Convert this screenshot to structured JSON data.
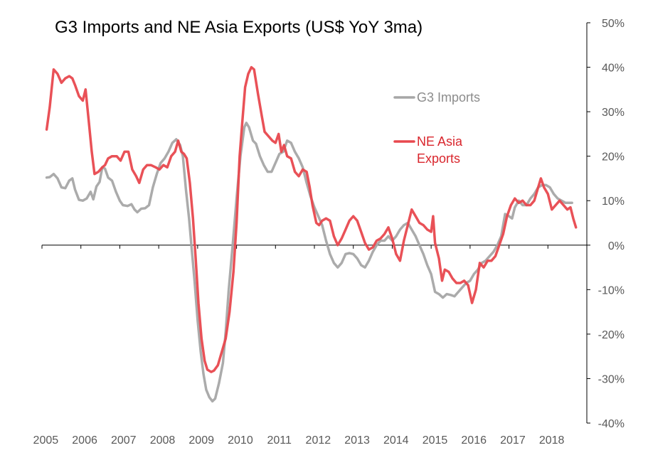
{
  "chart_data": {
    "type": "line",
    "title": "G3 Imports and NE Asia Exports (US$ YoY 3ma)",
    "xlabel": "",
    "ylabel": "",
    "x_ticks": [
      "2005",
      "2006",
      "2007",
      "2008",
      "2009",
      "2010",
      "2011",
      "2012",
      "2013",
      "2014",
      "2015",
      "2016",
      "2017",
      "2018"
    ],
    "y_ticks": [
      "50%",
      "40%",
      "30%",
      "20%",
      "10%",
      "0%",
      "-10%",
      "-20%",
      "-30%",
      "-40%"
    ],
    "y_tick_values": [
      50,
      40,
      30,
      20,
      10,
      0,
      -10,
      -20,
      -30,
      -40
    ],
    "ylim": [
      -40,
      50
    ],
    "xlim": [
      2005.0,
      2019.0
    ],
    "y_axis_side": "right",
    "grid": false,
    "legend_position": "upper-right-inside",
    "series": [
      {
        "name": "G3 Imports",
        "label_lines": [
          "G3 Imports"
        ],
        "color": "#a6a6a6",
        "points": [
          [
            2005.12,
            15.2
          ],
          [
            2005.2,
            15.3
          ],
          [
            2005.3,
            16.0
          ],
          [
            2005.4,
            15.0
          ],
          [
            2005.5,
            13.0
          ],
          [
            2005.6,
            12.8
          ],
          [
            2005.7,
            14.5
          ],
          [
            2005.78,
            15.0
          ],
          [
            2005.85,
            12.5
          ],
          [
            2005.95,
            10.2
          ],
          [
            2006.05,
            10.0
          ],
          [
            2006.15,
            10.5
          ],
          [
            2006.25,
            12.0
          ],
          [
            2006.32,
            10.3
          ],
          [
            2006.4,
            13.2
          ],
          [
            2006.48,
            14.2
          ],
          [
            2006.55,
            17.5
          ],
          [
            2006.62,
            17.2
          ],
          [
            2006.7,
            15.2
          ],
          [
            2006.8,
            14.5
          ],
          [
            2006.9,
            12.0
          ],
          [
            2007.0,
            10.0
          ],
          [
            2007.08,
            9.0
          ],
          [
            2007.2,
            8.8
          ],
          [
            2007.3,
            9.2
          ],
          [
            2007.38,
            8.0
          ],
          [
            2007.45,
            7.4
          ],
          [
            2007.55,
            8.2
          ],
          [
            2007.65,
            8.3
          ],
          [
            2007.75,
            9.0
          ],
          [
            2007.85,
            13.0
          ],
          [
            2007.95,
            16.0
          ],
          [
            2008.05,
            18.5
          ],
          [
            2008.15,
            19.5
          ],
          [
            2008.25,
            21.0
          ],
          [
            2008.35,
            23.0
          ],
          [
            2008.45,
            23.8
          ],
          [
            2008.55,
            22.5
          ],
          [
            2008.62,
            20.0
          ],
          [
            2008.7,
            12.5
          ],
          [
            2008.78,
            6.0
          ],
          [
            2008.85,
            -1.0
          ],
          [
            2008.92,
            -8.0
          ],
          [
            2009.0,
            -17.0
          ],
          [
            2009.08,
            -24.0
          ],
          [
            2009.15,
            -29.0
          ],
          [
            2009.22,
            -32.5
          ],
          [
            2009.3,
            -34.2
          ],
          [
            2009.38,
            -35.1
          ],
          [
            2009.45,
            -34.5
          ],
          [
            2009.55,
            -31.0
          ],
          [
            2009.65,
            -26.5
          ],
          [
            2009.72,
            -19.5
          ],
          [
            2009.8,
            -10.0
          ],
          [
            2009.9,
            0.0
          ],
          [
            2010.0,
            10.5
          ],
          [
            2010.1,
            20.0
          ],
          [
            2010.2,
            26.5
          ],
          [
            2010.25,
            27.5
          ],
          [
            2010.32,
            26.5
          ],
          [
            2010.42,
            23.5
          ],
          [
            2010.5,
            22.8
          ],
          [
            2010.6,
            20.0
          ],
          [
            2010.7,
            18.0
          ],
          [
            2010.8,
            16.5
          ],
          [
            2010.9,
            16.5
          ],
          [
            2011.0,
            18.5
          ],
          [
            2011.1,
            20.5
          ],
          [
            2011.2,
            21.0
          ],
          [
            2011.3,
            23.5
          ],
          [
            2011.4,
            23.0
          ],
          [
            2011.5,
            21.0
          ],
          [
            2011.6,
            19.5
          ],
          [
            2011.7,
            17.5
          ],
          [
            2011.8,
            14.0
          ],
          [
            2011.9,
            11.0
          ],
          [
            2012.0,
            8.5
          ],
          [
            2012.1,
            6.5
          ],
          [
            2012.2,
            4.5
          ],
          [
            2012.3,
            1.0
          ],
          [
            2012.4,
            -2.0
          ],
          [
            2012.5,
            -4.0
          ],
          [
            2012.6,
            -5.0
          ],
          [
            2012.7,
            -4.0
          ],
          [
            2012.8,
            -2.0
          ],
          [
            2012.9,
            -1.8
          ],
          [
            2013.0,
            -2.0
          ],
          [
            2013.1,
            -3.0
          ],
          [
            2013.2,
            -4.5
          ],
          [
            2013.3,
            -5.0
          ],
          [
            2013.4,
            -3.5
          ],
          [
            2013.5,
            -1.5
          ],
          [
            2013.6,
            0.0
          ],
          [
            2013.7,
            1.0
          ],
          [
            2013.8,
            1.0
          ],
          [
            2013.9,
            2.0
          ],
          [
            2014.0,
            1.0
          ],
          [
            2014.1,
            2.0
          ],
          [
            2014.2,
            3.5
          ],
          [
            2014.3,
            4.5
          ],
          [
            2014.4,
            5.0
          ],
          [
            2014.5,
            3.5
          ],
          [
            2014.6,
            2.0
          ],
          [
            2014.7,
            0.0
          ],
          [
            2014.8,
            -2.0
          ],
          [
            2014.9,
            -4.5
          ],
          [
            2015.0,
            -6.5
          ],
          [
            2015.1,
            -10.5
          ],
          [
            2015.2,
            -11.0
          ],
          [
            2015.3,
            -11.8
          ],
          [
            2015.4,
            -11.0
          ],
          [
            2015.5,
            -11.2
          ],
          [
            2015.6,
            -11.5
          ],
          [
            2015.7,
            -10.5
          ],
          [
            2015.8,
            -9.5
          ],
          [
            2015.9,
            -8.5
          ],
          [
            2016.0,
            -8.0
          ],
          [
            2016.1,
            -6.5
          ],
          [
            2016.2,
            -5.5
          ],
          [
            2016.3,
            -4.0
          ],
          [
            2016.4,
            -3.5
          ],
          [
            2016.5,
            -2.5
          ],
          [
            2016.6,
            -1.5
          ],
          [
            2016.7,
            0.0
          ],
          [
            2016.8,
            2.0
          ],
          [
            2016.9,
            7.0
          ],
          [
            2017.0,
            6.5
          ],
          [
            2017.08,
            6.0
          ],
          [
            2017.15,
            8.5
          ],
          [
            2017.25,
            10.0
          ],
          [
            2017.35,
            9.0
          ],
          [
            2017.45,
            9.0
          ],
          [
            2017.55,
            10.5
          ],
          [
            2017.65,
            11.5
          ],
          [
            2017.75,
            13.0
          ],
          [
            2017.85,
            13.5
          ],
          [
            2017.95,
            13.5
          ],
          [
            2018.05,
            13.0
          ],
          [
            2018.15,
            11.5
          ],
          [
            2018.25,
            10.5
          ],
          [
            2018.35,
            10.0
          ],
          [
            2018.45,
            9.5
          ],
          [
            2018.55,
            9.5
          ],
          [
            2018.62,
            9.5
          ]
        ]
      },
      {
        "name": "NE Asia Exports",
        "label_lines": [
          "NE Asia",
          "Exports"
        ],
        "color": "#e8484e",
        "points": [
          [
            2005.12,
            26.0
          ],
          [
            2005.2,
            31.0
          ],
          [
            2005.3,
            39.5
          ],
          [
            2005.4,
            38.5
          ],
          [
            2005.5,
            36.5
          ],
          [
            2005.6,
            37.5
          ],
          [
            2005.7,
            38.0
          ],
          [
            2005.78,
            37.5
          ],
          [
            2005.85,
            36.0
          ],
          [
            2005.95,
            33.5
          ],
          [
            2006.05,
            32.5
          ],
          [
            2006.12,
            35.0
          ],
          [
            2006.2,
            28.0
          ],
          [
            2006.28,
            21.0
          ],
          [
            2006.35,
            16.0
          ],
          [
            2006.45,
            16.5
          ],
          [
            2006.55,
            17.5
          ],
          [
            2006.62,
            18.0
          ],
          [
            2006.7,
            19.5
          ],
          [
            2006.8,
            20.0
          ],
          [
            2006.92,
            20.0
          ],
          [
            2007.02,
            19.0
          ],
          [
            2007.12,
            21.0
          ],
          [
            2007.22,
            21.0
          ],
          [
            2007.32,
            17.0
          ],
          [
            2007.42,
            15.5
          ],
          [
            2007.5,
            14.0
          ],
          [
            2007.6,
            17.0
          ],
          [
            2007.7,
            18.0
          ],
          [
            2007.8,
            18.0
          ],
          [
            2007.92,
            17.5
          ],
          [
            2008.02,
            17.0
          ],
          [
            2008.12,
            18.0
          ],
          [
            2008.22,
            17.5
          ],
          [
            2008.32,
            20.0
          ],
          [
            2008.42,
            21.0
          ],
          [
            2008.5,
            23.5
          ],
          [
            2008.58,
            21.0
          ],
          [
            2008.65,
            20.5
          ],
          [
            2008.72,
            19.5
          ],
          [
            2008.8,
            14.0
          ],
          [
            2008.88,
            6.0
          ],
          [
            2008.95,
            -3.0
          ],
          [
            2009.02,
            -13.0
          ],
          [
            2009.1,
            -21.0
          ],
          [
            2009.18,
            -26.0
          ],
          [
            2009.25,
            -28.0
          ],
          [
            2009.35,
            -28.5
          ],
          [
            2009.42,
            -28.2
          ],
          [
            2009.52,
            -27.0
          ],
          [
            2009.62,
            -24.0
          ],
          [
            2009.72,
            -21.0
          ],
          [
            2009.82,
            -15.0
          ],
          [
            2009.92,
            -6.0
          ],
          [
            2010.0,
            5.0
          ],
          [
            2010.08,
            20.0
          ],
          [
            2010.15,
            28.0
          ],
          [
            2010.22,
            35.5
          ],
          [
            2010.3,
            38.5
          ],
          [
            2010.38,
            40.0
          ],
          [
            2010.45,
            39.5
          ],
          [
            2010.55,
            34.0
          ],
          [
            2010.65,
            29.0
          ],
          [
            2010.72,
            25.5
          ],
          [
            2010.82,
            24.5
          ],
          [
            2010.92,
            23.5
          ],
          [
            2011.0,
            23.0
          ],
          [
            2011.08,
            25.0
          ],
          [
            2011.15,
            21.0
          ],
          [
            2011.22,
            22.5
          ],
          [
            2011.3,
            20.0
          ],
          [
            2011.4,
            19.5
          ],
          [
            2011.5,
            16.5
          ],
          [
            2011.6,
            15.5
          ],
          [
            2011.7,
            17.0
          ],
          [
            2011.8,
            16.5
          ],
          [
            2011.88,
            13.0
          ],
          [
            2011.95,
            9.0
          ],
          [
            2012.05,
            5.0
          ],
          [
            2012.12,
            4.5
          ],
          [
            2012.2,
            5.5
          ],
          [
            2012.3,
            6.0
          ],
          [
            2012.4,
            5.5
          ],
          [
            2012.5,
            2.0
          ],
          [
            2012.6,
            0.0
          ],
          [
            2012.7,
            1.5
          ],
          [
            2012.8,
            3.5
          ],
          [
            2012.9,
            5.5
          ],
          [
            2013.0,
            6.5
          ],
          [
            2013.1,
            5.5
          ],
          [
            2013.2,
            3.0
          ],
          [
            2013.3,
            0.5
          ],
          [
            2013.4,
            -1.0
          ],
          [
            2013.5,
            -0.5
          ],
          [
            2013.6,
            1.0
          ],
          [
            2013.7,
            1.5
          ],
          [
            2013.8,
            2.5
          ],
          [
            2013.9,
            4.0
          ],
          [
            2014.0,
            1.5
          ],
          [
            2014.1,
            -2.0
          ],
          [
            2014.2,
            -3.5
          ],
          [
            2014.3,
            1.0
          ],
          [
            2014.4,
            4.5
          ],
          [
            2014.5,
            8.0
          ],
          [
            2014.6,
            6.5
          ],
          [
            2014.7,
            5.0
          ],
          [
            2014.8,
            4.5
          ],
          [
            2014.9,
            3.5
          ],
          [
            2015.0,
            3.0
          ],
          [
            2015.05,
            6.5
          ],
          [
            2015.1,
            0.5
          ],
          [
            2015.2,
            -3.0
          ],
          [
            2015.28,
            -8.0
          ],
          [
            2015.35,
            -5.5
          ],
          [
            2015.45,
            -6.0
          ],
          [
            2015.55,
            -7.5
          ],
          [
            2015.65,
            -8.5
          ],
          [
            2015.75,
            -8.5
          ],
          [
            2015.85,
            -8.0
          ],
          [
            2015.95,
            -9.0
          ],
          [
            2016.05,
            -13.0
          ],
          [
            2016.15,
            -10.0
          ],
          [
            2016.25,
            -4.0
          ],
          [
            2016.35,
            -5.0
          ],
          [
            2016.45,
            -3.5
          ],
          [
            2016.55,
            -3.5
          ],
          [
            2016.65,
            -2.5
          ],
          [
            2016.75,
            0.0
          ],
          [
            2016.85,
            2.5
          ],
          [
            2016.95,
            6.5
          ],
          [
            2017.05,
            9.0
          ],
          [
            2017.15,
            10.5
          ],
          [
            2017.25,
            9.5
          ],
          [
            2017.35,
            10.0
          ],
          [
            2017.45,
            9.0
          ],
          [
            2017.55,
            9.0
          ],
          [
            2017.65,
            10.0
          ],
          [
            2017.75,
            13.0
          ],
          [
            2017.82,
            15.0
          ],
          [
            2017.9,
            13.0
          ],
          [
            2018.0,
            11.5
          ],
          [
            2018.1,
            8.0
          ],
          [
            2018.2,
            9.0
          ],
          [
            2018.3,
            10.0
          ],
          [
            2018.4,
            9.0
          ],
          [
            2018.5,
            8.0
          ],
          [
            2018.58,
            8.5
          ],
          [
            2018.65,
            6.0
          ],
          [
            2018.72,
            4.0
          ]
        ]
      }
    ]
  }
}
